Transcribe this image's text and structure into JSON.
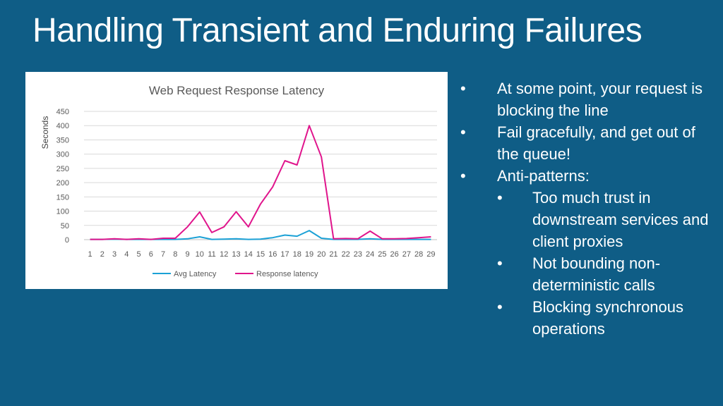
{
  "title": "Handling Transient and Enduring Failures",
  "bullets": [
    {
      "text": "At some point, your request is blocking the line",
      "level": 1
    },
    {
      "text": "Fail gracefully, and get out of the queue!",
      "level": 1
    },
    {
      "text": "Anti-patterns:",
      "level": 1
    },
    {
      "text": "Too much trust in downstream services and client proxies",
      "level": 2
    },
    {
      "text": "Not bounding non-deterministic calls",
      "level": 2
    },
    {
      "text": "Blocking synchronous operations",
      "level": 2
    }
  ],
  "chart_data": {
    "type": "line",
    "title": "Web Request Response Latency",
    "xlabel": "",
    "ylabel": "Seconds",
    "categories": [
      "1",
      "2",
      "3",
      "4",
      "5",
      "6",
      "7",
      "8",
      "9",
      "10",
      "11",
      "12",
      "13",
      "14",
      "15",
      "16",
      "17",
      "18",
      "19",
      "20",
      "21",
      "22",
      "23",
      "24",
      "25",
      "26",
      "27",
      "28",
      "29"
    ],
    "ylim": [
      0,
      450
    ],
    "yticks": [
      0,
      50,
      100,
      150,
      200,
      250,
      300,
      350,
      400,
      450
    ],
    "grid": true,
    "legend_position": "bottom",
    "series": [
      {
        "name": "Avg Latency",
        "color": "#1ba1d6",
        "values": [
          1,
          1,
          2,
          1,
          1,
          1,
          1,
          1,
          3,
          10,
          1,
          2,
          3,
          1,
          2,
          7,
          16,
          12,
          32,
          5,
          1,
          1,
          1,
          3,
          1,
          1,
          1,
          1,
          1
        ]
      },
      {
        "name": "Response latency",
        "color": "#e0158c",
        "values": [
          1,
          1,
          3,
          1,
          3,
          1,
          5,
          5,
          45,
          97,
          25,
          45,
          98,
          45,
          125,
          185,
          277,
          262,
          400,
          290,
          3,
          4,
          3,
          30,
          3,
          3,
          4,
          7,
          10
        ]
      }
    ]
  }
}
